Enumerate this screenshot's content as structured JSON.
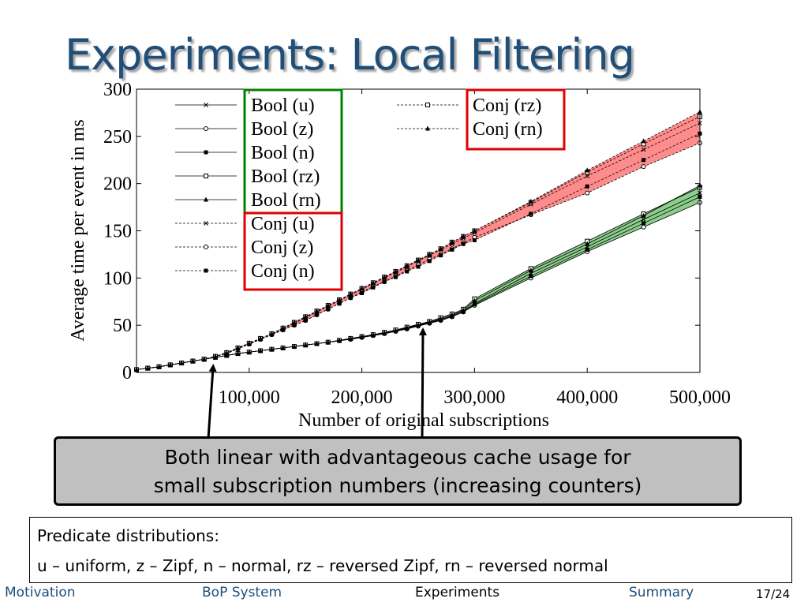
{
  "slide": {
    "title": "Experiments: Local Filtering",
    "callout_line1": "Both linear with advantageous cache usage for",
    "callout_line2": "small subscription numbers (increasing counters)",
    "info_heading": "Predicate distributions:",
    "info_text": "u – uniform, z – Zipf, n – normal, rz – reversed Zipf, rn – reversed normal",
    "page": "17/24"
  },
  "nav": [
    {
      "label": "Motivation",
      "active": false
    },
    {
      "label": "BoP System",
      "active": false
    },
    {
      "label": "Experiments",
      "active": true
    },
    {
      "label": "Summary",
      "active": false
    }
  ],
  "colors": {
    "title": "#1f4e79",
    "red_band": "#ff8080",
    "green_band": "#7fc97f",
    "red_box": "#e00000",
    "green_box": "#008000"
  },
  "chart_data": {
    "type": "line",
    "xlabel": "Number of original subscriptions",
    "ylabel": "Average time per event in ms",
    "xlim": [
      0,
      500000
    ],
    "ylim": [
      0,
      300
    ],
    "xticks": [
      100000,
      200000,
      300000,
      400000,
      500000
    ],
    "xtick_labels": [
      "100,000",
      "200,000",
      "300,000",
      "400,000",
      "500,000"
    ],
    "yticks": [
      0,
      50,
      100,
      150,
      200,
      250,
      300
    ],
    "ytick_labels": [
      "0",
      "50",
      "100",
      "150",
      "200",
      "250",
      "300"
    ],
    "x": [
      0,
      10000,
      20000,
      30000,
      40000,
      50000,
      60000,
      70000,
      80000,
      90000,
      100000,
      110000,
      120000,
      130000,
      140000,
      150000,
      160000,
      170000,
      180000,
      190000,
      200000,
      210000,
      220000,
      230000,
      240000,
      250000,
      260000,
      270000,
      280000,
      290000,
      300000,
      350000,
      400000,
      450000,
      500000
    ],
    "series": [
      {
        "name": "Bool (u)",
        "marker": "x",
        "dash": false,
        "values": [
          3,
          4.5,
          6,
          8,
          10,
          12,
          14,
          16,
          18,
          20,
          21.5,
          23,
          24.5,
          26,
          27.5,
          29,
          30.5,
          32,
          33.5,
          35.5,
          37.5,
          39.5,
          41.5,
          44,
          47,
          50,
          53,
          56,
          60,
          65,
          73,
          105,
          133,
          162,
          190
        ]
      },
      {
        "name": "Bool (z)",
        "marker": "circle",
        "dash": false,
        "values": [
          3,
          4.5,
          6,
          8,
          10,
          12,
          14,
          16,
          18,
          20,
          21.5,
          23,
          24.5,
          26,
          27.5,
          29,
          30.5,
          32,
          33.5,
          35,
          37,
          39,
          41,
          43.5,
          46,
          49,
          52,
          55,
          59,
          64,
          71,
          100,
          128,
          154,
          180
        ]
      },
      {
        "name": "Bool (n)",
        "marker": "square-filled",
        "dash": false,
        "values": [
          3,
          4.5,
          6,
          8,
          10,
          12,
          14,
          16,
          18,
          20,
          21.5,
          23,
          24.5,
          26,
          27.5,
          29,
          30.5,
          32,
          33.5,
          35.5,
          37.5,
          39.5,
          41.5,
          44,
          46.5,
          49.5,
          52.5,
          55.5,
          59,
          64,
          72,
          102,
          130,
          158,
          186
        ]
      },
      {
        "name": "Bool (rz)",
        "marker": "square",
        "dash": false,
        "values": [
          3,
          4.5,
          6,
          8,
          10,
          12,
          14,
          16,
          18,
          20,
          21.5,
          23,
          24.5,
          26,
          27.5,
          29,
          30.5,
          32,
          34,
          36,
          38,
          40,
          42.5,
          45,
          48,
          51,
          54,
          58,
          62,
          67,
          78,
          110,
          139,
          168,
          196
        ]
      },
      {
        "name": "Bool (rn)",
        "marker": "triangle",
        "dash": false,
        "values": [
          3,
          4.5,
          6,
          8,
          10,
          12,
          14,
          16,
          18,
          20,
          21.5,
          23,
          24.5,
          26,
          27.5,
          29,
          30.5,
          32,
          34,
          36,
          38,
          40,
          42,
          44.5,
          47.5,
          50.5,
          53.5,
          57,
          61,
          66,
          76,
          108,
          136,
          166,
          198
        ]
      },
      {
        "name": "Conj (u)",
        "marker": "x",
        "dash": true,
        "values": [
          3,
          4.5,
          6,
          8,
          10,
          12,
          14,
          17,
          21,
          26,
          31,
          36,
          41,
          46,
          52,
          58,
          64,
          70,
          76,
          82,
          88,
          94,
          100,
          106,
          112,
          118,
          124,
          130,
          136,
          142,
          148,
          178,
          208,
          236,
          264
        ]
      },
      {
        "name": "Conj (z)",
        "marker": "circle",
        "dash": true,
        "values": [
          3,
          4.5,
          6,
          8,
          10,
          12,
          14,
          17,
          20,
          25,
          30,
          35,
          40,
          45,
          50,
          55,
          61,
          67,
          73,
          79,
          85,
          91,
          96,
          102,
          108,
          114,
          120,
          125,
          131,
          137,
          143,
          167,
          190,
          218,
          243
        ]
      },
      {
        "name": "Conj (n)",
        "marker": "square-filled",
        "dash": true,
        "values": [
          3,
          4.5,
          6,
          8,
          10,
          12,
          14,
          17,
          20,
          25,
          30,
          35,
          40,
          45,
          50,
          55,
          61,
          67,
          73,
          79,
          84,
          90,
          96,
          101,
          107,
          112,
          118,
          124,
          130,
          136,
          140,
          168,
          197,
          225,
          253
        ]
      },
      {
        "name": "Conj (rz)",
        "marker": "square",
        "dash": true,
        "values": [
          3,
          4.5,
          6,
          8,
          10,
          12,
          14,
          17,
          21,
          26,
          31,
          36,
          41,
          47,
          53,
          59,
          65,
          71,
          77,
          83,
          89,
          95,
          101,
          107,
          113,
          119,
          125,
          131,
          138,
          144,
          150,
          180,
          212,
          242,
          271
        ]
      },
      {
        "name": "Conj (rn)",
        "marker": "triangle-filled",
        "dash": true,
        "values": [
          3,
          4.5,
          6,
          8,
          10,
          12,
          14,
          17,
          21,
          26,
          31,
          36,
          41,
          47,
          53,
          59,
          65,
          71,
          77,
          83,
          89,
          95,
          101,
          107,
          113,
          119,
          125,
          131,
          138,
          144,
          150,
          181,
          214,
          245,
          276
        ]
      }
    ]
  }
}
